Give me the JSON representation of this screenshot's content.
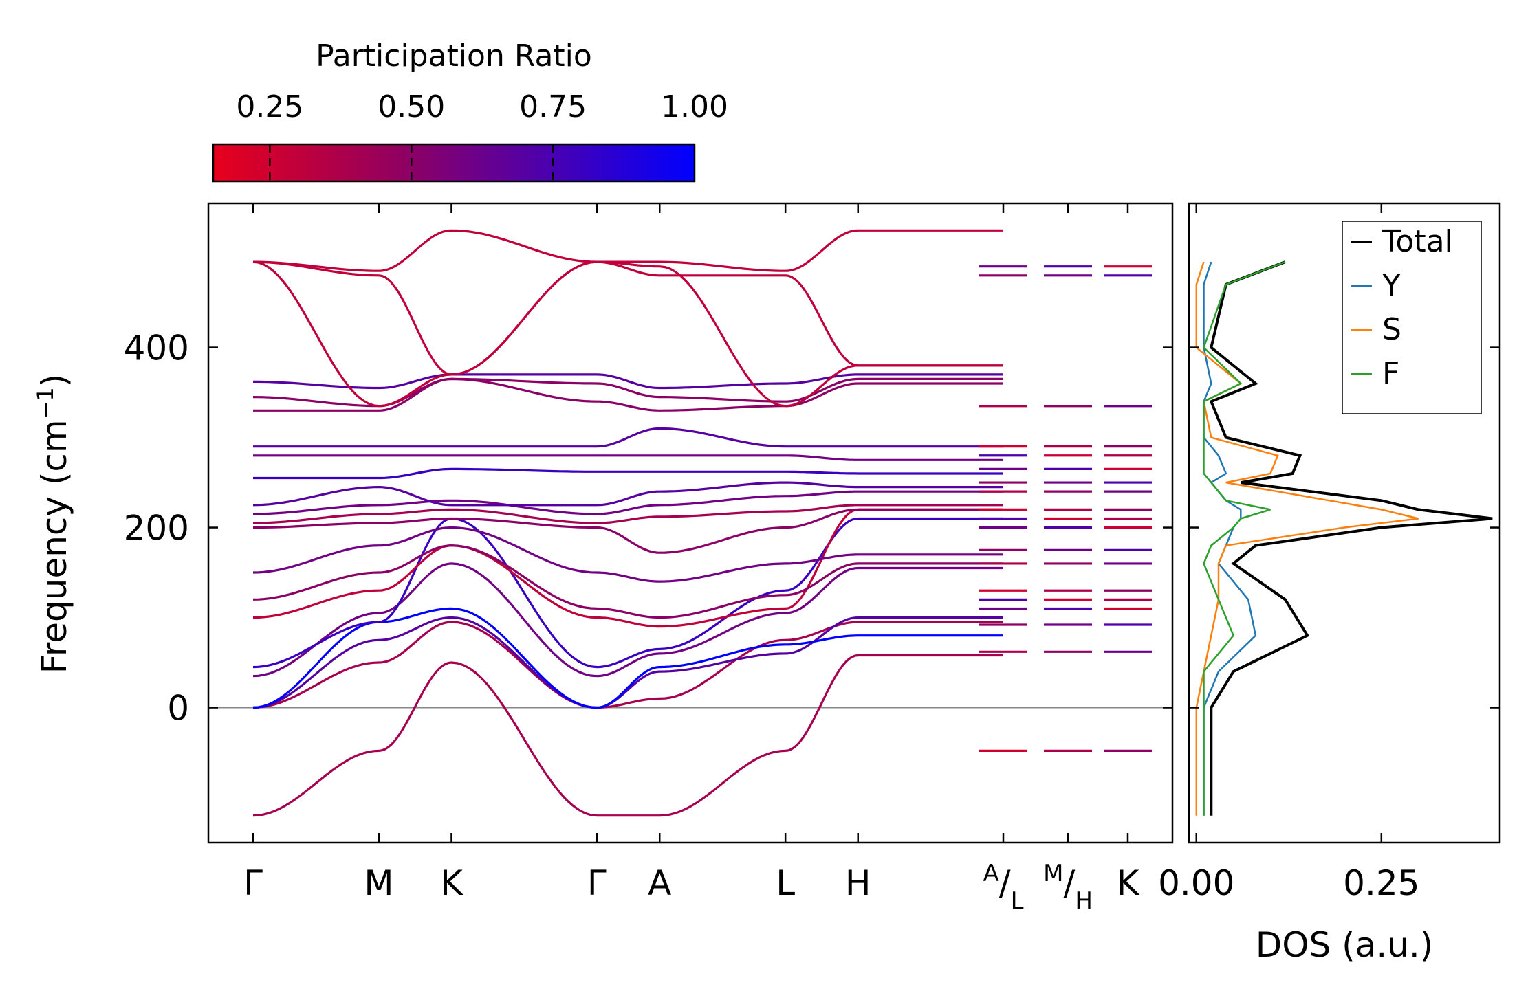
{
  "chart_data": [
    {
      "type": "line",
      "name": "phonon-band-structure",
      "ylabel": "Frequency (cm",
      "ylabel_sup": "−1",
      "ylabel_tail": ")",
      "ylim": [
        -150,
        560
      ],
      "yticks": [
        0,
        200,
        400
      ],
      "ytick_labels": [
        "0",
        "200",
        "400"
      ],
      "zero_line": true,
      "path_segment_lengths": [
        1.0,
        0.577,
        1.155,
        0.5,
        1.0,
        0.577,
        1.155
      ],
      "path_breaks_after": [
        3,
        6
      ],
      "x_tick_labels": [
        {
          "text": "Γ"
        },
        {
          "text": "M"
        },
        {
          "text": "K"
        },
        {
          "text": "Γ"
        },
        {
          "text": "A"
        },
        {
          "text": "L"
        },
        {
          "text": "H"
        },
        {
          "sup": "A",
          "sep": "/",
          "sub": "L"
        },
        {
          "sup": "M",
          "sep": "/",
          "sub": "H"
        },
        {
          "text": "K"
        }
      ],
      "colorbar": {
        "label": "Participation Ratio",
        "vmin": 0.15,
        "vmax": 1.0,
        "ticks": [
          0.25,
          0.5,
          0.75,
          1.0
        ],
        "tick_labels": [
          "0.25",
          "0.50",
          "0.75",
          "1.00"
        ],
        "colors": [
          "#e8001c",
          "#8e0063",
          "#4a00b0",
          "#0000ff"
        ]
      },
      "bands": [
        {
          "pr": 0.4,
          "values": [
            -120,
            -48,
            50,
            -120,
            -120,
            -48,
            58
          ]
        },
        {
          "pr": 0.4,
          "values": [
            0,
            50,
            95,
            0,
            10,
            75,
            95
          ]
        },
        {
          "pr": 0.7,
          "values": [
            0,
            75,
            100,
            0,
            40,
            60,
            100
          ]
        },
        {
          "pr": 1.0,
          "values": [
            0,
            95,
            110,
            0,
            45,
            70,
            80
          ]
        },
        {
          "pr": 0.6,
          "values": [
            35,
            105,
            160,
            35,
            60,
            105,
            155
          ]
        },
        {
          "pr": 0.8,
          "values": [
            45,
            95,
            210,
            45,
            65,
            130,
            210
          ]
        },
        {
          "pr": 0.3,
          "values": [
            100,
            130,
            180,
            100,
            90,
            110,
            220
          ]
        },
        {
          "pr": 0.5,
          "values": [
            120,
            150,
            180,
            110,
            100,
            125,
            160
          ]
        },
        {
          "pr": 0.6,
          "values": [
            150,
            180,
            200,
            150,
            140,
            160,
            170
          ]
        },
        {
          "pr": 0.5,
          "values": [
            200,
            205,
            210,
            200,
            172,
            200,
            220
          ]
        },
        {
          "pr": 0.4,
          "values": [
            205,
            215,
            220,
            205,
            212,
            218,
            225
          ]
        },
        {
          "pr": 0.6,
          "values": [
            215,
            225,
            230,
            215,
            225,
            235,
            240
          ]
        },
        {
          "pr": 0.7,
          "values": [
            225,
            245,
            225,
            225,
            240,
            250,
            245
          ]
        },
        {
          "pr": 0.8,
          "values": [
            255,
            255,
            265,
            262,
            262,
            262,
            260
          ]
        },
        {
          "pr": 0.6,
          "values": [
            280,
            280,
            280,
            280,
            280,
            280,
            275
          ]
        },
        {
          "pr": 0.7,
          "values": [
            290,
            290,
            290,
            290,
            310,
            290,
            290
          ]
        },
        {
          "pr": 0.5,
          "values": [
            330,
            330,
            365,
            340,
            330,
            335,
            360
          ]
        },
        {
          "pr": 0.5,
          "values": [
            345,
            335,
            365,
            360,
            345,
            340,
            365
          ]
        },
        {
          "pr": 0.7,
          "values": [
            362,
            355,
            370,
            370,
            355,
            360,
            370
          ]
        },
        {
          "pr": 0.3,
          "values": [
            495,
            485,
            530,
            495,
            495,
            485,
            530
          ]
        },
        {
          "pr": 0.3,
          "values": [
            495,
            480,
            370,
            495,
            480,
            480,
            380
          ]
        },
        {
          "pr": 0.3,
          "values": [
            495,
            335,
            370,
            495,
            490,
            335,
            380
          ]
        }
      ],
      "q_point_levels": [
        -48,
        62,
        92,
        110,
        120,
        130,
        160,
        175,
        200,
        210,
        220,
        240,
        250,
        265,
        280,
        290,
        335,
        480,
        490
      ]
    },
    {
      "type": "line",
      "name": "phonon-density-of-states",
      "xlabel": "DOS (a.u.)",
      "xlim": [
        -0.01,
        0.41
      ],
      "xticks": [
        0.0,
        0.25
      ],
      "xtick_labels": [
        "0.00",
        "0.25"
      ],
      "ylim": [
        -150,
        560
      ],
      "series": [
        {
          "name": "Total",
          "color": "#000000",
          "y": [
            -120,
            0,
            40,
            80,
            120,
            160,
            180,
            200,
            210,
            220,
            230,
            250,
            260,
            280,
            300,
            340,
            360,
            400,
            470,
            495
          ],
          "values": [
            0.02,
            0.02,
            0.05,
            0.15,
            0.12,
            0.05,
            0.08,
            0.25,
            0.4,
            0.3,
            0.25,
            0.06,
            0.13,
            0.14,
            0.04,
            0.02,
            0.08,
            0.02,
            0.04,
            0.12
          ]
        },
        {
          "name": "Y",
          "color": "#1f77b4",
          "y": [
            -120,
            0,
            40,
            80,
            120,
            160,
            180,
            200,
            210,
            220,
            230,
            250,
            260,
            280,
            300,
            340,
            360,
            400,
            470,
            495
          ],
          "values": [
            0.01,
            0.01,
            0.03,
            0.08,
            0.07,
            0.03,
            0.04,
            0.05,
            0.06,
            0.06,
            0.04,
            0.02,
            0.04,
            0.03,
            0.01,
            0.01,
            0.02,
            0.01,
            0.01,
            0.02
          ]
        },
        {
          "name": "S",
          "color": "#ff7f0e",
          "y": [
            -120,
            0,
            40,
            80,
            120,
            160,
            180,
            200,
            210,
            220,
            230,
            250,
            260,
            280,
            300,
            340,
            360,
            400,
            470,
            495
          ],
          "values": [
            0.0,
            0.0,
            0.01,
            0.02,
            0.03,
            0.03,
            0.04,
            0.2,
            0.3,
            0.25,
            0.18,
            0.04,
            0.1,
            0.11,
            0.02,
            0.01,
            0.06,
            0.0,
            0.0,
            0.01
          ]
        },
        {
          "name": "F",
          "color": "#2ca02c",
          "y": [
            -120,
            0,
            40,
            80,
            120,
            160,
            180,
            200,
            210,
            220,
            230,
            250,
            260,
            280,
            300,
            340,
            360,
            400,
            470,
            495
          ],
          "values": [
            0.01,
            0.01,
            0.01,
            0.05,
            0.03,
            0.01,
            0.02,
            0.05,
            0.06,
            0.1,
            0.04,
            0.02,
            0.01,
            0.01,
            0.01,
            0.01,
            0.06,
            0.01,
            0.04,
            0.12
          ]
        }
      ],
      "legend": {
        "position": "top-right",
        "entries": [
          "Total",
          "Y",
          "S",
          "F"
        ]
      }
    }
  ]
}
